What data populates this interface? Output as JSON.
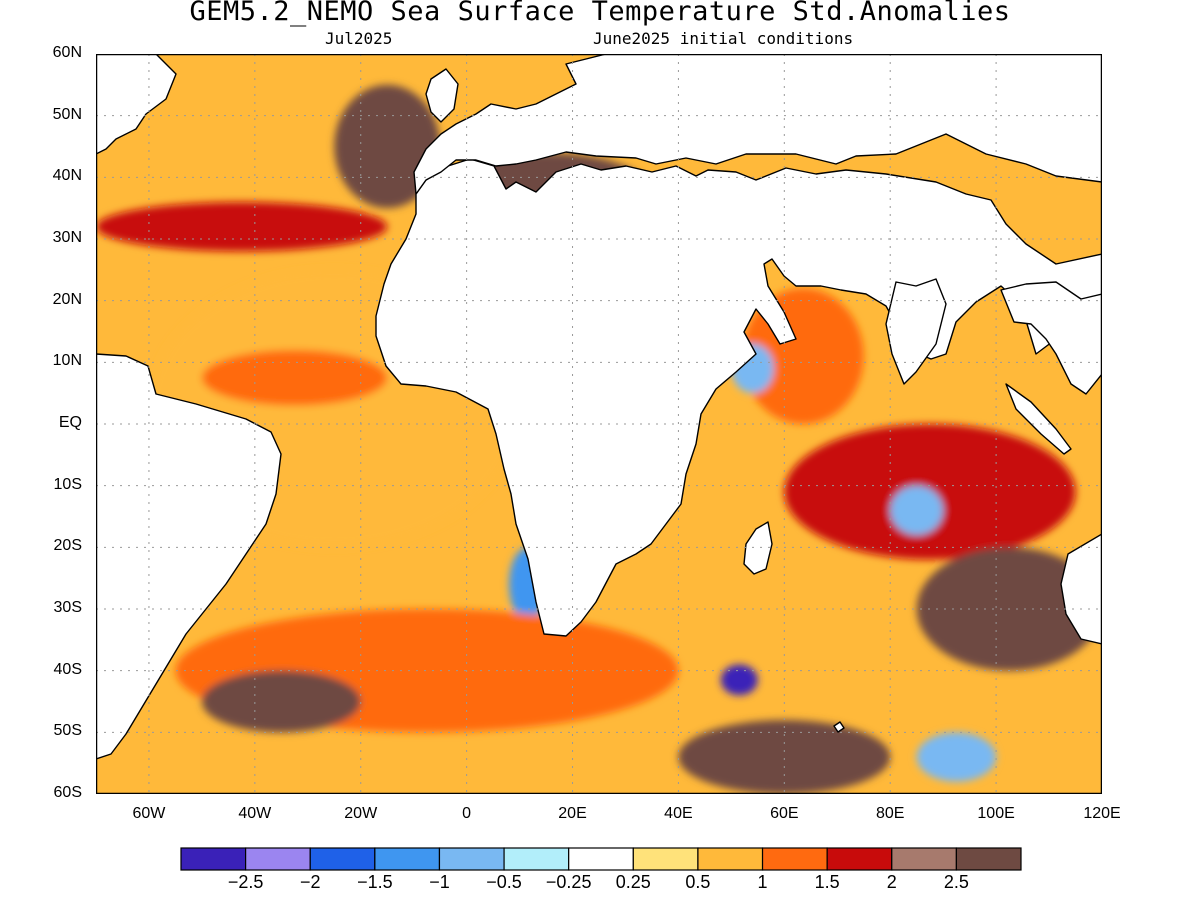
{
  "header": {
    "title": "GEM5.2_NEMO Sea Surface Temperature Std.Anomalies",
    "valid_label": "Jul2025",
    "init_label": "June2025 initial conditions"
  },
  "axes": {
    "lat_labels": [
      "60N",
      "50N",
      "40N",
      "30N",
      "20N",
      "10N",
      "EQ",
      "10S",
      "20S",
      "30S",
      "40S",
      "50S",
      "60S"
    ],
    "lon_labels": [
      "60W",
      "40W",
      "20W",
      "0",
      "20E",
      "40E",
      "60E",
      "80E",
      "100E",
      "120E"
    ],
    "lon_range": [
      -70,
      120
    ],
    "lat_range": [
      -60,
      60
    ],
    "grid": "dotted"
  },
  "colorbar": {
    "colors": [
      "#3a21b8",
      "#9b85f0",
      "#1f61e8",
      "#3f96f0",
      "#79b8f2",
      "#b2eefa",
      "#ffffff",
      "#ffe27a",
      "#ffb93a",
      "#ff6a10",
      "#c80b0b",
      "#a77a6d",
      "#6e4a42"
    ],
    "tick_labels": [
      "-2.5",
      "-2",
      "-1.5",
      "-1",
      "-0.5",
      "-0.25",
      "0.25",
      "0.5",
      "1",
      "1.5",
      "2",
      "2.5"
    ]
  },
  "land_color": "#ffffff",
  "regions": [
    {
      "name": "North Atlantic band",
      "fill": "#c80b0b",
      "lon": [
        -70,
        -15
      ],
      "lat": [
        28,
        36
      ]
    },
    {
      "name": "NE Atlantic",
      "fill": "#6e4a42",
      "lon": [
        -25,
        -5
      ],
      "lat": [
        35,
        55
      ]
    },
    {
      "name": "Tropical Atlantic",
      "fill": "#ffb93a",
      "lon": [
        -60,
        10
      ],
      "lat": [
        -20,
        25
      ]
    },
    {
      "name": "Eq Atlantic",
      "fill": "#ff6a10",
      "lon": [
        -50,
        -15
      ],
      "lat": [
        3,
        12
      ]
    },
    {
      "name": "Benguela",
      "fill": "#3f96f0",
      "lon": [
        8,
        15
      ],
      "lat": [
        -32,
        -20
      ]
    },
    {
      "name": "Arabian Sea",
      "fill": "#ff6a10",
      "lon": [
        52,
        75
      ],
      "lat": [
        0,
        22
      ]
    },
    {
      "name": "Somali upwelling",
      "fill": "#79b8f2",
      "lon": [
        50,
        58
      ],
      "lat": [
        5,
        13
      ]
    },
    {
      "name": "Central Indian",
      "fill": "#c80b0b",
      "lon": [
        60,
        115
      ],
      "lat": [
        -22,
        0
      ]
    },
    {
      "name": "SE Indian",
      "fill": "#6e4a42",
      "lon": [
        85,
        120
      ],
      "lat": [
        -40,
        -20
      ]
    },
    {
      "name": "Indian cold spot",
      "fill": "#79b8f2",
      "lon": [
        80,
        90
      ],
      "lat": [
        -18,
        -10
      ]
    },
    {
      "name": "Southern Ocean",
      "fill": "#6e4a42",
      "lon": [
        40,
        80
      ],
      "lat": [
        -60,
        -48
      ]
    },
    {
      "name": "South Atlantic",
      "fill": "#ff6a10",
      "lon": [
        -55,
        40
      ],
      "lat": [
        -50,
        -30
      ]
    },
    {
      "name": "SW Atlantic brown",
      "fill": "#6e4a42",
      "lon": [
        -50,
        -20
      ],
      "lat": [
        -50,
        -40
      ]
    },
    {
      "name": "Southern cold spot",
      "fill": "#3a21b8",
      "lon": [
        48,
        55
      ],
      "lat": [
        -44,
        -39
      ]
    },
    {
      "name": "SE Southern cold",
      "fill": "#79b8f2",
      "lon": [
        85,
        100
      ],
      "lat": [
        -58,
        -50
      ]
    },
    {
      "name": "Mediterranean",
      "fill": "#6e4a42",
      "lon": [
        -5,
        35
      ],
      "lat": [
        31,
        44
      ]
    }
  ]
}
